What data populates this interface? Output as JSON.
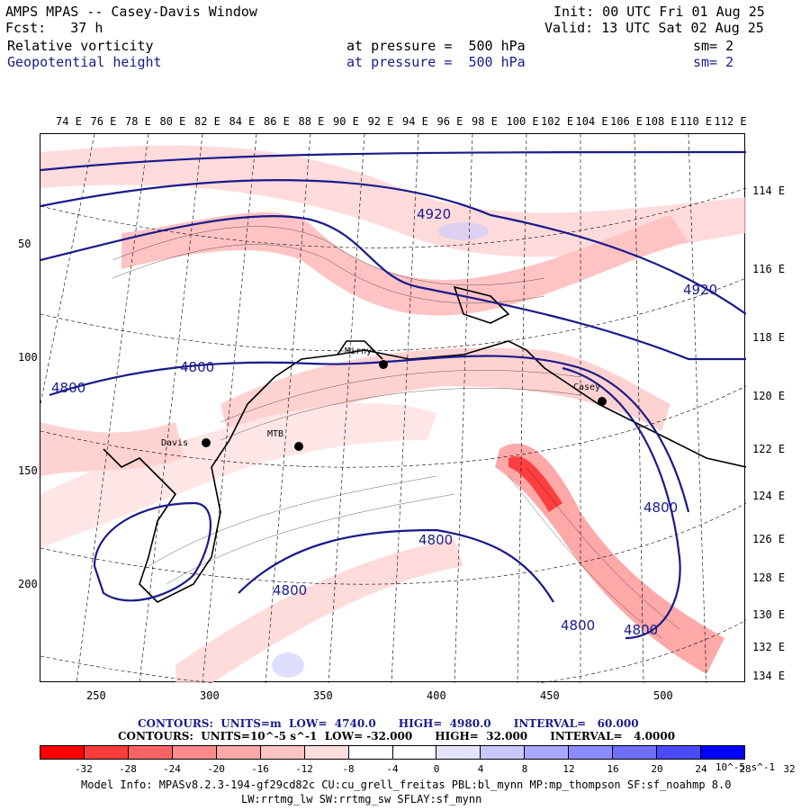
{
  "header": {
    "title": "AMPS MPAS -- Casey-Davis Window",
    "fcst": "Fcst:   37 h",
    "init": "Init: 00 UTC Fri 01 Aug 25",
    "valid": "Valid: 13 UTC Sat 02 Aug 25",
    "field1_name": "Relative vorticity",
    "field1_level": "at pressure =  500 hPa",
    "field1_sm": "sm= 2",
    "field2_name": "Geopotential height",
    "field2_level": "at pressure =  500 hPa",
    "field2_sm": "sm= 2"
  },
  "axes": {
    "top_lon_labels": [
      "74 E",
      "76 E",
      "78 E",
      "80 E",
      "82 E",
      "84 E",
      "86 E",
      "88 E",
      "90 E",
      "92 E",
      "94 E",
      "96 E",
      "98 E",
      "100 E",
      "102 E",
      "104 E",
      "106 E",
      "108 E",
      "110 E",
      "112 E"
    ],
    "right_lon_labels": [
      "114 E",
      "116 E",
      "118 E",
      "120 E",
      "122 E",
      "124 E",
      "126 E",
      "128 E",
      "130 E",
      "132 E",
      "134 E"
    ],
    "x_ticks": [
      "250",
      "300",
      "350",
      "400",
      "450",
      "500"
    ],
    "y_ticks": [
      "50",
      "100",
      "150",
      "200"
    ]
  },
  "stations": [
    "Davis",
    "MTB",
    "Mirny",
    "Casey"
  ],
  "height_contour_labels": [
    "4800",
    "4800",
    "4800",
    "4800",
    "4800",
    "4800",
    "4800",
    "4920",
    "4920"
  ],
  "legend": {
    "contours1": "CONTOURS:  UNITS=m  LOW=  4740.0      HIGH=  4980.0      INTERVAL=   60.000",
    "contours2": "CONTOURS:  UNITS=10^-5 s^-1  LOW= -32.000      HIGH=  32.000      INTERVAL=   4.0000",
    "colorbar_labels": [
      "-32",
      "-28",
      "-24",
      "-20",
      "-16",
      "-12",
      "-8",
      "-4",
      "0",
      "4",
      "8",
      "12",
      "16",
      "20",
      "24",
      "28",
      "32"
    ],
    "colorbar_unit": "10^-5 s^-1",
    "colorbar_colors": [
      "#ff0000",
      "#ff3c3c",
      "#ff6464",
      "#ff8c8c",
      "#ffa8a8",
      "#ffc4c4",
      "#ffdede",
      "#ffffff",
      "#ffffff",
      "#e4e4ff",
      "#c8c8ff",
      "#a8a8ff",
      "#8c8cff",
      "#6e6eff",
      "#4a4aff",
      "#0000ff"
    ]
  },
  "footer": {
    "line1": "Model Info: MPASv8.2.3-194-gf29cd82c CU:cu_grell_freitas PBL:bl_mynn MP:mp_thompson SF:sf_noahmp 8.0",
    "line2": "LW:rrtmg_lw SW:rrtmg_sw SFLAY:sf_mynn"
  },
  "colors": {
    "contour_blue": "#1a1a8c",
    "pos_vort": "#ff6464",
    "neg_vort": "#8c8cff"
  }
}
